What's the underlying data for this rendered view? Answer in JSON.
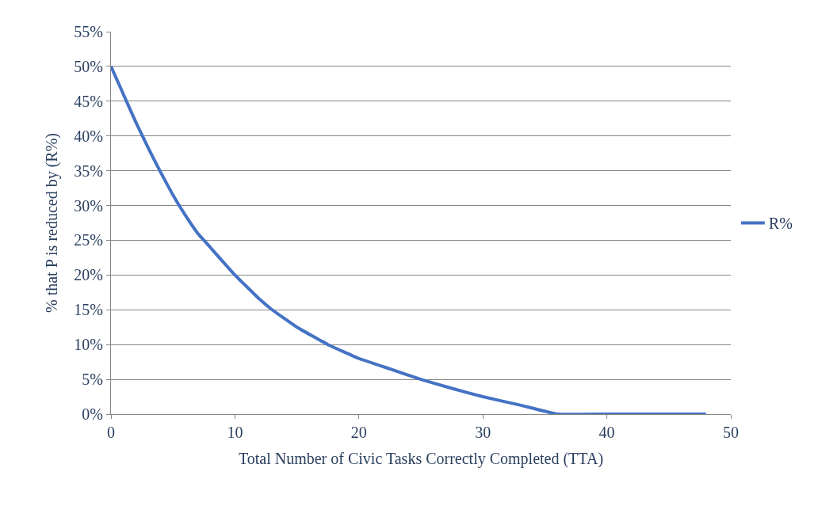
{
  "chart_data": {
    "type": "line",
    "xlabel": "Total Number of Civic Tasks Correctly Completed (TTA)",
    "ylabel": "% that P is reduced by (R%)",
    "x": [
      0,
      1,
      2,
      3,
      4,
      5,
      6,
      7,
      8,
      10,
      12,
      13,
      15,
      17.5,
      20,
      22.5,
      25,
      27.5,
      30,
      33,
      36,
      40,
      44,
      48
    ],
    "series": [
      {
        "name": "R%",
        "color": "#4472c4",
        "values": [
          50,
          46,
          42,
          38.3,
          34.8,
          31.5,
          28.6,
          26,
          24,
          20,
          16.5,
          15,
          12.5,
          10,
          8,
          6.5,
          5,
          3.7,
          2.5,
          1.3,
          0,
          0,
          0,
          0
        ]
      }
    ],
    "xlim": [
      0,
      50
    ],
    "xticks": [
      0,
      10,
      20,
      30,
      40,
      50
    ],
    "ylim": [
      0,
      55
    ],
    "yticks": [
      {
        "value": 0,
        "label": "0%"
      },
      {
        "value": 5,
        "label": "5%"
      },
      {
        "value": 10,
        "label": "10%"
      },
      {
        "value": 15,
        "label": "15%"
      },
      {
        "value": 20,
        "label": "20%"
      },
      {
        "value": 25,
        "label": "25%"
      },
      {
        "value": 30,
        "label": "30%"
      },
      {
        "value": 35,
        "label": "35%"
      },
      {
        "value": 40,
        "label": "40%"
      },
      {
        "value": 45,
        "label": "45%"
      },
      {
        "value": 50,
        "label": "50%"
      },
      {
        "value": 55,
        "label": "55%"
      }
    ],
    "grid": "y",
    "legend": "right",
    "marker": "none",
    "line_style": "solid"
  }
}
